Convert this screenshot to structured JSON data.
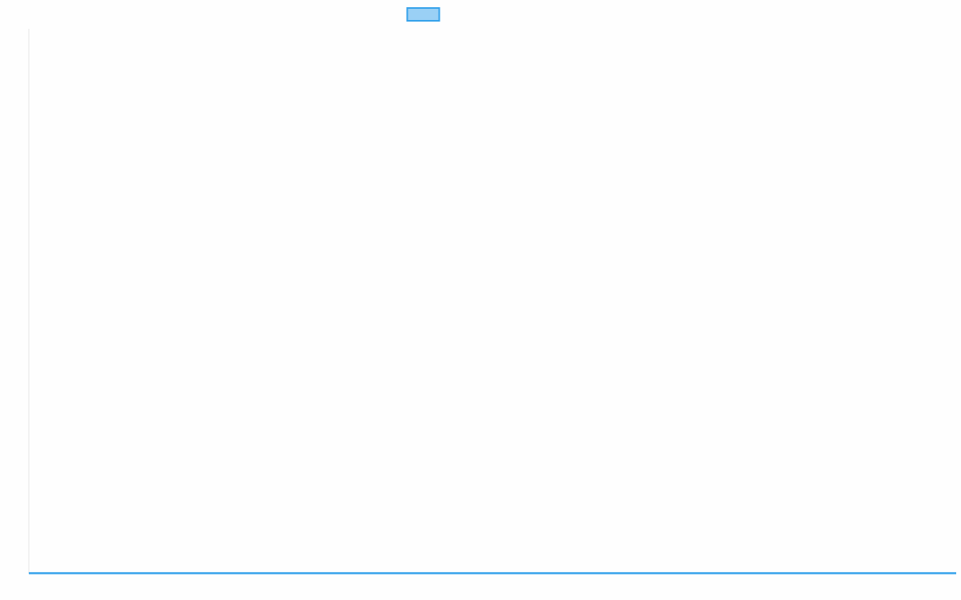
{
  "chart_data": {
    "type": "line",
    "title": "",
    "xlabel": "",
    "ylabel": "",
    "categories": [],
    "series": [
      {
        "values": [],
        "color": "#36a2eb",
        "fill": "#9ad0f5"
      }
    ],
    "legend": "top",
    "grid": false,
    "axis_color": "#e5e5e5"
  }
}
